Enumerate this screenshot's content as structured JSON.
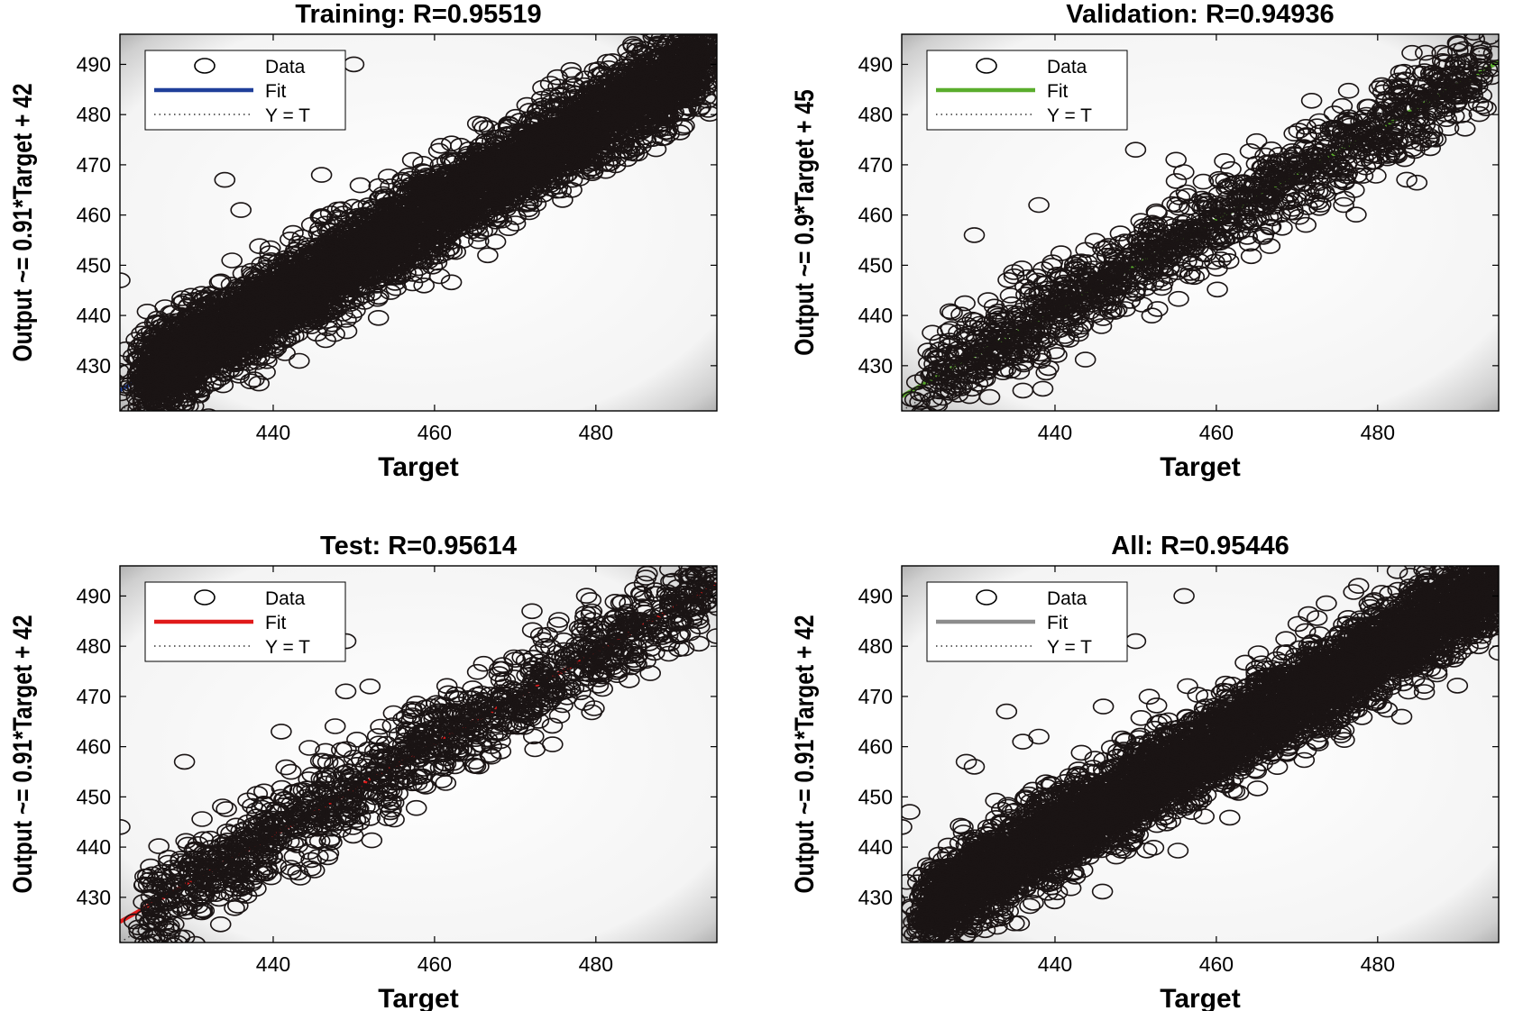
{
  "figure": {
    "background": "#ffffff",
    "point_color": "#1a1414",
    "ideal_line_color": "#333333"
  },
  "chart_data": [
    {
      "type": "scatter",
      "title": "Training: R=0.95519",
      "xlabel": "Target",
      "ylabel": "Output ~= 0.91*Target + 42",
      "xlim": [
        421,
        495
      ],
      "ylim": [
        421,
        496
      ],
      "xticks": [
        440,
        460,
        480
      ],
      "yticks": [
        430,
        440,
        450,
        460,
        470,
        480,
        490
      ],
      "grid": false,
      "fit": {
        "slope": 0.91,
        "intercept": 42,
        "color": "#1f3f9a"
      },
      "legend": {
        "position": "top-left",
        "entries": [
          "Data",
          "Fit",
          "Y = T"
        ]
      },
      "data_summary": {
        "x_range": [
          424,
          494
        ],
        "spread": 4.5,
        "density": "very high"
      },
      "outliers": [
        [
          421,
          447
        ],
        [
          427,
          424
        ],
        [
          434,
          467
        ],
        [
          436,
          461
        ],
        [
          450,
          490
        ],
        [
          446,
          468
        ],
        [
          456,
          467
        ],
        [
          445,
          449
        ]
      ]
    },
    {
      "type": "scatter",
      "title": "Validation: R=0.94936",
      "xlabel": "Target",
      "ylabel": "Output ~= 0.9*Target + 45",
      "xlim": [
        421,
        495
      ],
      "ylim": [
        421,
        496
      ],
      "xticks": [
        440,
        460,
        480
      ],
      "yticks": [
        430,
        440,
        450,
        460,
        470,
        480,
        490
      ],
      "grid": false,
      "fit": {
        "slope": 0.9,
        "intercept": 45,
        "color": "#5aad2d"
      },
      "legend": {
        "position": "top-left",
        "entries": [
          "Data",
          "Fit",
          "Y = T"
        ]
      },
      "data_summary": {
        "x_range": [
          424,
          493
        ],
        "spread": 4.5,
        "density": "medium"
      },
      "outliers": [
        [
          430,
          456
        ],
        [
          427,
          425
        ],
        [
          438,
          462
        ],
        [
          450,
          473
        ],
        [
          455,
          471
        ],
        [
          492,
          495
        ],
        [
          490,
          494
        ]
      ]
    },
    {
      "type": "scatter",
      "title": "Test: R=0.95614",
      "xlabel": "Target",
      "ylabel": "Output ~= 0.91*Target + 42",
      "xlim": [
        421,
        495
      ],
      "ylim": [
        421,
        496
      ],
      "xticks": [
        440,
        460,
        480
      ],
      "yticks": [
        430,
        440,
        450,
        460,
        470,
        480,
        490
      ],
      "grid": false,
      "fit": {
        "slope": 0.91,
        "intercept": 42,
        "color": "#e01a1a"
      },
      "legend": {
        "position": "top-left",
        "entries": [
          "Data",
          "Fit",
          "Y = T"
        ]
      },
      "data_summary": {
        "x_range": [
          424,
          495
        ],
        "spread": 4.5,
        "density": "medium"
      },
      "outliers": [
        [
          421,
          444
        ],
        [
          429,
          457
        ],
        [
          429,
          422
        ],
        [
          441,
          463
        ],
        [
          449,
          471
        ],
        [
          452,
          472
        ],
        [
          449,
          481
        ],
        [
          495,
          482
        ],
        [
          491,
          494
        ]
      ]
    },
    {
      "type": "scatter",
      "title": "All: R=0.95446",
      "xlabel": "Target",
      "ylabel": "Output ~= 0.91*Target + 42",
      "xlim": [
        421,
        495
      ],
      "ylim": [
        421,
        496
      ],
      "xticks": [
        440,
        460,
        480
      ],
      "yticks": [
        430,
        440,
        450,
        460,
        470,
        480,
        490
      ],
      "grid": false,
      "fit": {
        "slope": 0.91,
        "intercept": 42,
        "color": "#8c8c8c"
      },
      "legend": {
        "position": "top-left",
        "entries": [
          "Data",
          "Fit",
          "Y = T"
        ]
      },
      "data_summary": {
        "x_range": [
          424,
          495
        ],
        "spread": 4.5,
        "density": "very high"
      },
      "outliers": [
        [
          421,
          444
        ],
        [
          422,
          447
        ],
        [
          427,
          422
        ],
        [
          428,
          424
        ],
        [
          429,
          457
        ],
        [
          430,
          456
        ],
        [
          434,
          467
        ],
        [
          436,
          461
        ],
        [
          438,
          462
        ],
        [
          456,
          490
        ],
        [
          450,
          481
        ],
        [
          446,
          468
        ],
        [
          490,
          494
        ]
      ]
    }
  ]
}
